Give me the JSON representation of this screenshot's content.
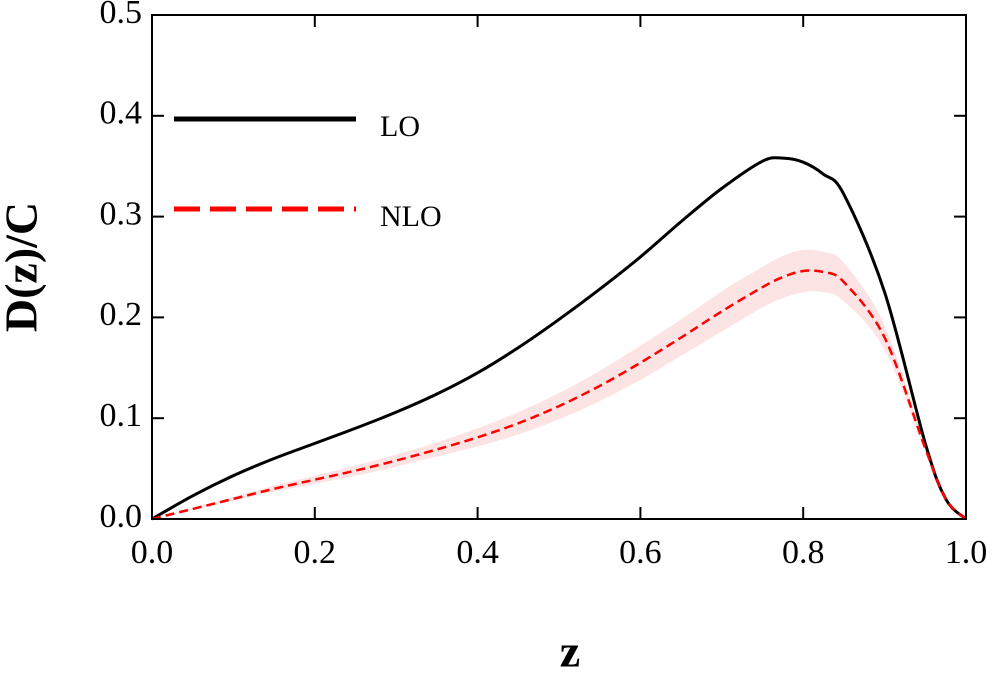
{
  "chart_data": {
    "type": "line",
    "xlabel": "z",
    "ylabel": "D(z)/C",
    "x": [
      0,
      0.05,
      0.1,
      0.15,
      0.2,
      0.25,
      0.3,
      0.35,
      0.4,
      0.45,
      0.5,
      0.55,
      0.6,
      0.65,
      0.7,
      0.75,
      0.775,
      0.8,
      0.825,
      0.85,
      0.9,
      0.95,
      0.975,
      1.0
    ],
    "series": [
      {
        "name": "LO",
        "color": "#000000",
        "dash": "solid",
        "values": [
          0,
          0.023,
          0.043,
          0.06,
          0.075,
          0.09,
          0.106,
          0.124,
          0.145,
          0.17,
          0.198,
          0.228,
          0.26,
          0.295,
          0.328,
          0.355,
          0.358,
          0.354,
          0.342,
          0.322,
          0.225,
          0.075,
          0.02,
          0
        ]
      },
      {
        "name": "NLO",
        "color": "#ff0000",
        "dash": "dashed",
        "values": [
          0,
          0.01,
          0.02,
          0.03,
          0.039,
          0.048,
          0.058,
          0.069,
          0.081,
          0.095,
          0.112,
          0.132,
          0.155,
          0.18,
          0.206,
          0.23,
          0.24,
          0.246,
          0.245,
          0.235,
          0.18,
          0.07,
          0.02,
          0
        ]
      }
    ],
    "band": {
      "color": "#fde4e4",
      "upper": [
        0,
        0.011,
        0.022,
        0.033,
        0.043,
        0.053,
        0.064,
        0.076,
        0.09,
        0.106,
        0.125,
        0.147,
        0.172,
        0.198,
        0.226,
        0.25,
        0.261,
        0.267,
        0.265,
        0.254,
        0.192,
        0.073,
        0.021,
        0
      ],
      "lower": [
        0,
        0.009,
        0.018,
        0.027,
        0.035,
        0.043,
        0.052,
        0.062,
        0.072,
        0.084,
        0.099,
        0.117,
        0.138,
        0.162,
        0.186,
        0.21,
        0.219,
        0.225,
        0.225,
        0.216,
        0.168,
        0.067,
        0.019,
        0
      ]
    },
    "xlim": [
      0,
      1.0
    ],
    "ylim": [
      0,
      0.5
    ],
    "xticks": [
      {
        "value": 0,
        "label": "0.0"
      },
      0.2,
      0.4,
      0.6,
      0.8,
      {
        "value": 1,
        "label": "1.0"
      }
    ],
    "yticks": [
      {
        "value": 0,
        "label": "0.0"
      },
      0.1,
      0.2,
      0.3,
      0.4,
      0.5
    ],
    "legend": "upper left",
    "grid": false
  }
}
